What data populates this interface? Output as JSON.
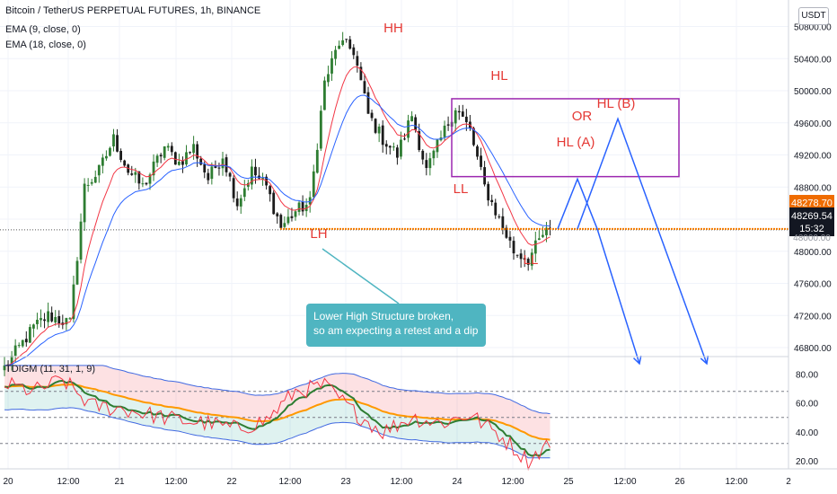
{
  "header": {
    "symbol_line": "Bitcoin / TetherUS PERPETUAL FUTURES, 1h, BINANCE",
    "ema_fast": "EMA (9, close, 0)",
    "ema_slow": "EMA (18, close, 0)",
    "currency_button": "USDT"
  },
  "indicator": {
    "title": "TDIGM (11, 31, 1, 9)"
  },
  "annotations": {
    "hh": "HH",
    "hl_top": "HL",
    "ll_left": "LL",
    "lh": "LH",
    "ll_right": "LL",
    "or": "OR",
    "hl_a": "HL (A)",
    "hl_b": "HL (B)",
    "callout_line1": "Lower High Structure broken,",
    "callout_line2": "so am expecting a retest and a dip"
  },
  "price_tags": {
    "upper": "48278.70",
    "last": "48269.54",
    "countdown": "15:32",
    "hidden": "48000.00"
  },
  "colors": {
    "up": "#26a69a",
    "down": "#ef5350",
    "candle_up": "#2e7d32",
    "candle_down": "#1b1b1b",
    "ema_fast": "#f23645",
    "ema_slow": "#2962ff",
    "support": "#f57c00",
    "box": "#9c27b0",
    "label_red": "#e53935",
    "projection": "#2962ff"
  },
  "chart_data": [
    {
      "type": "candlestick",
      "title": "Bitcoin / TetherUS PERPETUAL FUTURES, 1h, BINANCE",
      "x_tick_labels": [
        "20",
        "12:00",
        "21",
        "12:00",
        "22",
        "12:00",
        "23",
        "12:00",
        "24",
        "12:00",
        "25",
        "12:00",
        "26",
        "12:00",
        "2"
      ],
      "y_tick_labels": [
        "46800.00",
        "47200.00",
        "47600.00",
        "48000.00",
        "48400.00",
        "48800.00",
        "49200.00",
        "49600.00",
        "50000.00",
        "50400.00",
        "50800.00"
      ],
      "ylim": [
        46500,
        50900
      ],
      "close_anchor_indices": [
        0,
        8,
        12,
        18,
        22,
        26,
        30,
        34,
        38,
        44,
        48,
        52,
        56,
        60,
        64,
        68,
        72,
        76,
        80,
        84,
        88,
        92,
        96,
        100,
        104,
        108,
        112,
        116,
        120,
        124,
        128,
        132,
        136,
        140,
        144,
        148,
        150
      ],
      "close_anchor_values": [
        46550,
        47050,
        47200,
        47100,
        48800,
        49000,
        49400,
        49000,
        48800,
        49300,
        49100,
        49300,
        48900,
        49200,
        48600,
        49000,
        48800,
        48300,
        48500,
        48600,
        50100,
        50600,
        50500,
        49700,
        49400,
        49200,
        49700,
        49000,
        49400,
        49800,
        49500,
        48800,
        48400,
        48000,
        47900,
        48200,
        48269.54
      ],
      "support_level": 48278.7,
      "resistance_box": [
        49900,
        48930
      ],
      "series": [
        {
          "name": "EMA (9, close, 0)",
          "kind": "ema",
          "period": 9
        },
        {
          "name": "EMA (18, close, 0)",
          "kind": "ema",
          "period": 18
        }
      ],
      "projection_path_a": [
        48278.7,
        48900,
        48278.7,
        46600
      ],
      "projection_path_b": [
        48278.7,
        49650,
        46600
      ],
      "last_price": 48269.54
    },
    {
      "type": "line",
      "title": "TDIGM (11, 31, 1, 9)",
      "y_tick_labels": [
        "20.00",
        "40.00",
        "60.00",
        "80.00"
      ],
      "ylim": [
        15,
        88
      ],
      "reference_levels": [
        68,
        50,
        32
      ],
      "rsi_anchor_indices": [
        0,
        8,
        16,
        24,
        32,
        40,
        48,
        56,
        64,
        72,
        80,
        88,
        96,
        104,
        112,
        120,
        128,
        136,
        144,
        150
      ],
      "rsi_anchor_values": [
        73,
        68,
        76,
        58,
        56,
        52,
        48,
        46,
        42,
        48,
        68,
        72,
        54,
        40,
        50,
        46,
        52,
        38,
        20,
        33
      ],
      "series": [
        {
          "name": "RSI",
          "color": "#f23645"
        },
        {
          "name": "signal",
          "color": "#2e7d32"
        },
        {
          "name": "baseline",
          "color": "#ff9800"
        },
        {
          "name": "upper band",
          "color": "#4169e1"
        },
        {
          "name": "lower band",
          "color": "#4169e1"
        }
      ]
    }
  ]
}
